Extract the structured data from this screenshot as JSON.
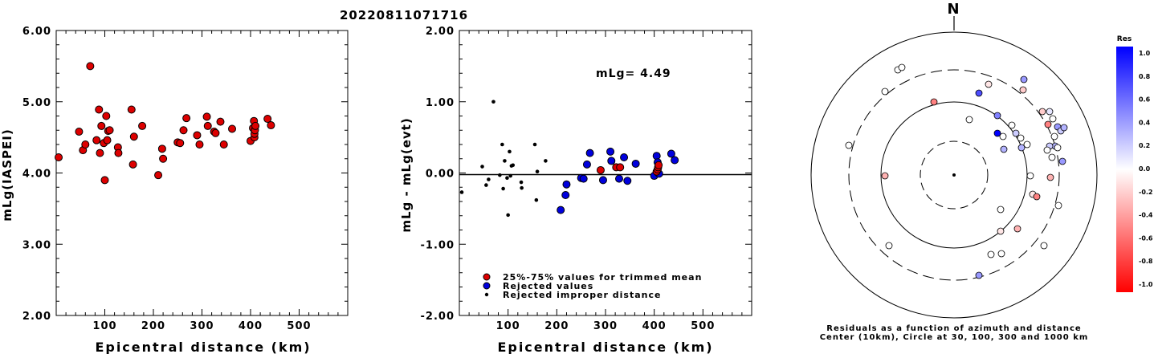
{
  "title": "20220811071716",
  "chart_data": [
    {
      "type": "scatter",
      "xlabel": "Epicentral distance (km)",
      "ylabel": "mLg(IASPEI)",
      "xlim": [
        0,
        600
      ],
      "ylim": [
        2.0,
        6.0
      ],
      "xticks": [
        "100",
        "200",
        "300",
        "400",
        "500"
      ],
      "yticks": [
        "2.00",
        "3.00",
        "4.00",
        "5.00",
        "6.00"
      ],
      "series": [
        {
          "color": "#dd0000",
          "points": [
            [
              5,
              4.22
            ],
            [
              47,
              4.58
            ],
            [
              55,
              4.32
            ],
            [
              60,
              4.4
            ],
            [
              70,
              5.5
            ],
            [
              83,
              4.46
            ],
            [
              88,
              4.89
            ],
            [
              90,
              4.28
            ],
            [
              93,
              4.66
            ],
            [
              98,
              4.42
            ],
            [
              100,
              3.9
            ],
            [
              103,
              4.8
            ],
            [
              105,
              4.46
            ],
            [
              107,
              4.59
            ],
            [
              110,
              4.6
            ],
            [
              127,
              4.36
            ],
            [
              128,
              4.28
            ],
            [
              155,
              4.89
            ],
            [
              158,
              4.12
            ],
            [
              160,
              4.51
            ],
            [
              177,
              4.66
            ],
            [
              210,
              3.97
            ],
            [
              218,
              4.34
            ],
            [
              220,
              4.2
            ],
            [
              250,
              4.43
            ],
            [
              255,
              4.42
            ],
            [
              262,
              4.6
            ],
            [
              268,
              4.77
            ],
            [
              290,
              4.53
            ],
            [
              295,
              4.4
            ],
            [
              310,
              4.79
            ],
            [
              312,
              4.66
            ],
            [
              325,
              4.58
            ],
            [
              328,
              4.56
            ],
            [
              338,
              4.72
            ],
            [
              345,
              4.4
            ],
            [
              362,
              4.62
            ],
            [
              400,
              4.45
            ],
            [
              405,
              4.63
            ],
            [
              407,
              4.73
            ],
            [
              408,
              4.5
            ],
            [
              408,
              4.55
            ],
            [
              409,
              4.6
            ],
            [
              410,
              4.66
            ],
            [
              435,
              4.76
            ],
            [
              442,
              4.67
            ]
          ]
        }
      ]
    },
    {
      "type": "scatter",
      "xlabel": "Epicentral distance (km)",
      "ylabel": "mLg - mLg(evt)",
      "xlim": [
        0,
        600
      ],
      "ylim": [
        -2.0,
        2.0
      ],
      "xticks": [
        "100",
        "200",
        "300",
        "400",
        "500"
      ],
      "yticks": [
        "-2.00",
        "-1.00",
        "0.00",
        "1.00",
        "2.00"
      ],
      "annotation": "mLg= 4.49",
      "legend": [
        "25%-75% values for trimmed mean",
        "Rejected values",
        "Rejected improper distance"
      ],
      "legend_position": "bottom-left",
      "series": [
        {
          "name": "25%-75% values for trimmed mean",
          "color": "#dd0000",
          "points": [
            [
              290,
              0.04
            ],
            [
              322,
              0.08
            ],
            [
              330,
              0.08
            ],
            [
              405,
              0.02
            ],
            [
              407,
              0.05
            ],
            [
              408,
              0.08
            ],
            [
              409,
              0.11
            ]
          ]
        },
        {
          "name": "Rejected values",
          "color": "#0000dd",
          "points": [
            [
              208,
              -0.52
            ],
            [
              218,
              -0.31
            ],
            [
              220,
              -0.16
            ],
            [
              250,
              -0.07
            ],
            [
              255,
              -0.08
            ],
            [
              262,
              0.12
            ],
            [
              268,
              0.28
            ],
            [
              295,
              -0.1
            ],
            [
              310,
              0.3
            ],
            [
              312,
              0.17
            ],
            [
              328,
              -0.08
            ],
            [
              338,
              0.22
            ],
            [
              345,
              -0.11
            ],
            [
              362,
              0.13
            ],
            [
              400,
              -0.04
            ],
            [
              405,
              0.24
            ],
            [
              407,
              0.15
            ],
            [
              408,
              0.0
            ],
            [
              410,
              -0.01
            ],
            [
              435,
              0.27
            ],
            [
              442,
              0.18
            ]
          ]
        },
        {
          "name": "Rejected improper distance",
          "color": "#000000",
          "points": [
            [
              5,
              -0.27
            ],
            [
              47,
              0.09
            ],
            [
              55,
              -0.17
            ],
            [
              60,
              -0.09
            ],
            [
              70,
              1.0
            ],
            [
              83,
              -0.03
            ],
            [
              88,
              0.4
            ],
            [
              90,
              -0.22
            ],
            [
              93,
              0.17
            ],
            [
              98,
              -0.07
            ],
            [
              100,
              -0.59
            ],
            [
              103,
              0.3
            ],
            [
              105,
              -0.04
            ],
            [
              107,
              0.1
            ],
            [
              110,
              0.11
            ],
            [
              127,
              -0.13
            ],
            [
              128,
              -0.21
            ],
            [
              155,
              0.4
            ],
            [
              158,
              -0.38
            ],
            [
              160,
              0.02
            ],
            [
              177,
              0.17
            ]
          ]
        }
      ]
    },
    {
      "type": "polar-scatter",
      "north_label": "N",
      "caption_line1": "Residuals as a function of azimuth and distance",
      "caption_line2": "Center (10km), Circle at 30, 100, 300 and 1000 km",
      "colorbar_title": "Res",
      "colorbar_ticks": [
        "1.0",
        "0.8",
        "0.6",
        "0.4",
        "0.2",
        "0.0",
        "-0.2",
        "-0.4",
        "-0.6",
        "-0.8",
        "-1.0"
      ],
      "grid_circles_km": [
        30,
        100,
        300,
        1000
      ],
      "points_rel_center": [
        [
          -70,
          -131,
          0.0
        ],
        [
          -65,
          -134,
          0.0
        ],
        [
          -86,
          -104,
          0.0
        ],
        [
          -131,
          -37,
          0.0
        ],
        [
          -25,
          -91,
          -0.5
        ],
        [
          19,
          -69,
          0.0
        ],
        [
          31,
          -102,
          0.7
        ],
        [
          43,
          -113,
          -0.1
        ],
        [
          87,
          -119,
          0.4
        ],
        [
          86,
          -106,
          -0.2
        ],
        [
          -81,
          88,
          0.0
        ],
        [
          59,
          98,
          0.0
        ],
        [
          -86,
          1,
          -0.3
        ],
        [
          54,
          -74,
          0.5
        ],
        [
          54,
          -52,
          1.0
        ],
        [
          61,
          -48,
          0.0
        ],
        [
          77,
          -52,
          0.2
        ],
        [
          83,
          -46,
          0.0
        ],
        [
          84,
          -34,
          0.3
        ],
        [
          91,
          -38,
          0.0
        ],
        [
          72,
          -62,
          0.0
        ],
        [
          62,
          -32,
          0.3
        ],
        [
          110,
          -79,
          -0.2
        ],
        [
          117,
          -63,
          -0.5
        ],
        [
          119,
          -79,
          0.1
        ],
        [
          123,
          -70,
          0.0
        ],
        [
          129,
          -60,
          0.4
        ],
        [
          133,
          -55,
          0.2
        ],
        [
          137,
          -59,
          0.3
        ],
        [
          125,
          -48,
          0.0
        ],
        [
          126,
          -36,
          0.3
        ],
        [
          119,
          -36,
          0.2
        ],
        [
          116,
          -31,
          0.0
        ],
        [
          129,
          -34,
          0.0
        ],
        [
          135,
          -17,
          0.4
        ],
        [
          122,
          -22,
          0.0
        ],
        [
          95,
          1,
          0.0
        ],
        [
          120,
          3,
          -0.3
        ],
        [
          98,
          24,
          -0.1
        ],
        [
          103,
          27,
          -0.5
        ],
        [
          130,
          38,
          0.0
        ],
        [
          58,
          43,
          0.0
        ],
        [
          58,
          70,
          -0.1
        ],
        [
          79,
          67,
          -0.3
        ],
        [
          112,
          88,
          0.0
        ],
        [
          46,
          99,
          0.0
        ],
        [
          31,
          125,
          0.4
        ]
      ]
    }
  ]
}
